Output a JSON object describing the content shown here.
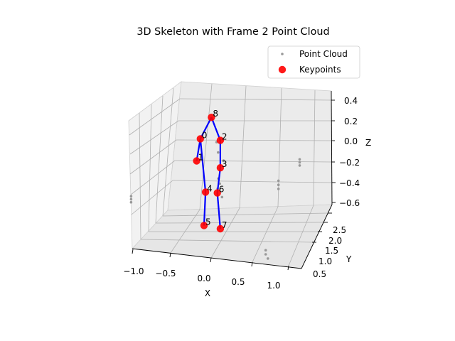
{
  "chart_data": {
    "type": "scatter",
    "projection": "3d",
    "title": "3D Skeleton with Frame 2 Point Cloud",
    "xlabel": "X",
    "ylabel": "Y",
    "zlabel": "Z",
    "xlim": [
      -1.0,
      1.2
    ],
    "ylim": [
      0.4,
      2.8
    ],
    "zlim": [
      -0.62,
      0.45
    ],
    "x_ticks": [
      "−1.0",
      "−0.5",
      "0.0",
      "0.5",
      "1.0"
    ],
    "y_ticks": [
      "0.5",
      "1.0",
      "1.5",
      "2.0",
      "2.5"
    ],
    "z_ticks": [
      "−0.6",
      "−0.4",
      "−0.2",
      "0.0",
      "0.2",
      "0.4"
    ],
    "grid": true,
    "legend_placement": "top-right",
    "legend": [
      {
        "label": "Point Cloud",
        "color": "#999999",
        "marker": "small-dot"
      },
      {
        "label": "Keypoints",
        "color": "#ff0000",
        "marker": "large-dot"
      }
    ],
    "keypoints": [
      {
        "id": "0",
        "x": -0.05,
        "y": 1.5,
        "z": 0.05
      },
      {
        "id": "1",
        "x": -0.1,
        "y": 1.5,
        "z": -0.17
      },
      {
        "id": "2",
        "x": 0.22,
        "y": 1.5,
        "z": 0.05
      },
      {
        "id": "3",
        "x": 0.22,
        "y": 1.5,
        "z": -0.22
      },
      {
        "id": "4",
        "x": 0.02,
        "y": 1.5,
        "z": -0.47
      },
      {
        "id": "5",
        "x": 0.0,
        "y": 1.5,
        "z": -0.8
      },
      {
        "id": "6",
        "x": 0.18,
        "y": 1.5,
        "z": -0.47
      },
      {
        "id": "7",
        "x": 0.22,
        "y": 1.5,
        "z": -0.82
      },
      {
        "id": "8",
        "x": 0.1,
        "y": 1.5,
        "z": 0.27
      }
    ],
    "skeleton_edges": [
      [
        8,
        0
      ],
      [
        8,
        2
      ],
      [
        0,
        1
      ],
      [
        0,
        4
      ],
      [
        2,
        3
      ],
      [
        3,
        6
      ],
      [
        4,
        5
      ],
      [
        6,
        7
      ]
    ],
    "point_cloud": [
      {
        "x": 0.3,
        "y": 1.2,
        "z": 0.1
      },
      {
        "x": 0.32,
        "y": 1.2,
        "z": 0.0
      },
      {
        "x": 0.35,
        "y": 1.3,
        "z": -0.1
      },
      {
        "x": 0.28,
        "y": 1.3,
        "z": -0.28
      },
      {
        "x": 0.3,
        "y": 1.3,
        "z": -0.33
      },
      {
        "x": 0.27,
        "y": 1.3,
        "z": -0.38
      },
      {
        "x": 0.33,
        "y": 1.3,
        "z": -0.46
      },
      {
        "x": -0.9,
        "y": 1.3,
        "z": -0.52
      },
      {
        "x": -0.9,
        "y": 1.3,
        "z": -0.55
      },
      {
        "x": -0.9,
        "y": 1.3,
        "z": -0.58
      },
      {
        "x": 1.25,
        "y": 1.6,
        "z": -0.1
      },
      {
        "x": 1.25,
        "y": 1.6,
        "z": -0.13
      },
      {
        "x": 1.25,
        "y": 1.6,
        "z": -0.16
      },
      {
        "x": 1.05,
        "y": 1.4,
        "z": -0.28
      },
      {
        "x": 1.05,
        "y": 1.4,
        "z": -0.32
      },
      {
        "x": 1.05,
        "y": 1.4,
        "z": -0.36
      },
      {
        "x": 1.05,
        "y": 1.0,
        "z": -0.88
      },
      {
        "x": 1.05,
        "y": 1.0,
        "z": -0.92
      },
      {
        "x": 1.08,
        "y": 1.0,
        "z": -0.96
      }
    ]
  }
}
